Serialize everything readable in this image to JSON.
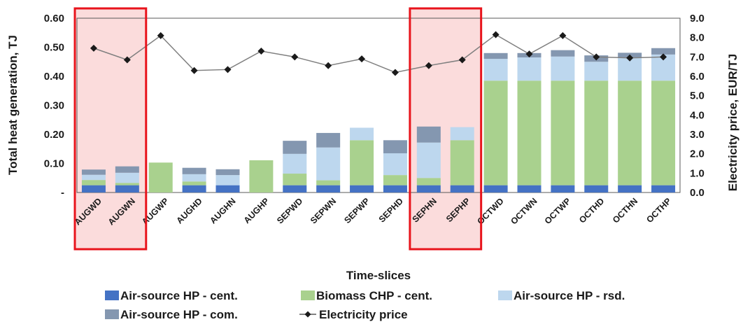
{
  "chart_data": {
    "type": "bar",
    "stacked": true,
    "secondary_type": "line",
    "categories": [
      "AUGWD",
      "AUGWN",
      "AUGWP",
      "AUGHD",
      "AUGHN",
      "AUGHP",
      "SEPWD",
      "SEPWN",
      "SEPWP",
      "SEPHD",
      "SEPHN",
      "SEPHP",
      "OCTWD",
      "OCTWN",
      "OCTWP",
      "OCTHD",
      "OCTHN",
      "OCTHP"
    ],
    "series": [
      {
        "name": "Air-source HP - cent.",
        "axis": "left",
        "color": "#4472c4",
        "values": [
          0.025,
          0.025,
          0,
          0.025,
          0.025,
          0,
          0.025,
          0.025,
          0.025,
          0.025,
          0.025,
          0.025,
          0.025,
          0.025,
          0.025,
          0.025,
          0.025,
          0.025
        ]
      },
      {
        "name": "Biomass CHP - cent.",
        "axis": "left",
        "color": "#a9d18e",
        "values": [
          0.018,
          0.008,
          0.103,
          0.013,
          0,
          0.111,
          0.04,
          0.017,
          0.155,
          0.035,
          0.025,
          0.155,
          0.36,
          0.36,
          0.36,
          0.36,
          0.36,
          0.36
        ]
      },
      {
        "name": "Air-source HP - rsd.",
        "axis": "left",
        "color": "#bdd7ee",
        "values": [
          0.018,
          0.035,
          0,
          0.025,
          0.035,
          0,
          0.068,
          0.113,
          0.043,
          0.075,
          0.122,
          0.045,
          0.075,
          0.08,
          0.083,
          0.065,
          0.078,
          0.09
        ]
      },
      {
        "name": "Air-source HP - com.",
        "axis": "left",
        "color": "#8497b0",
        "values": [
          0.018,
          0.022,
          0,
          0.022,
          0.02,
          0,
          0.045,
          0.05,
          0,
          0.045,
          0.055,
          0,
          0.02,
          0.015,
          0.022,
          0.022,
          0.018,
          0.022
        ]
      },
      {
        "name": "Electricity price",
        "axis": "right",
        "type": "line",
        "color": "#808080",
        "values": [
          7.45,
          6.85,
          8.1,
          6.3,
          6.35,
          7.3,
          7.0,
          6.55,
          6.9,
          6.2,
          6.55,
          6.85,
          8.15,
          7.15,
          8.1,
          7.0,
          6.95,
          7.0
        ]
      }
    ],
    "xlabel": "Time-slices",
    "ylabel": "Total heat generation, TJ",
    "y2label": "Electricity price, EUR/TJ",
    "ylim": [
      0,
      0.6
    ],
    "y2lim": [
      0,
      9.0
    ],
    "yticks": [
      "-",
      "0.10",
      "0.20",
      "0.30",
      "0.40",
      "0.50",
      "0.60"
    ],
    "y2ticks": [
      "0.0",
      "1.0",
      "2.0",
      "3.0",
      "4.0",
      "5.0",
      "6.0",
      "7.0",
      "8.0",
      "9.0"
    ],
    "grid": false,
    "legend_position": "bottom",
    "highlight_boxes": [
      {
        "from_category": "AUGWD",
        "to_category": "AUGWN",
        "border_color": "#e8141c",
        "fill_color": "#fbdcdc"
      },
      {
        "from_category": "SEPHN",
        "to_category": "SEPHP",
        "border_color": "#e8141c",
        "fill_color": "#fbdcdc"
      }
    ]
  }
}
